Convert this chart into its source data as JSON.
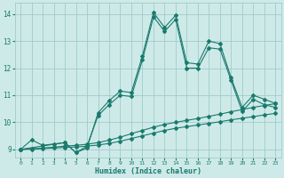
{
  "xlabel": "Humidex (Indice chaleur)",
  "background_color": "#ceeae8",
  "grid_color": "#a0ccca",
  "line_color": "#1a7a6e",
  "xlim": [
    -0.5,
    23.5
  ],
  "ylim": [
    8.7,
    14.4
  ],
  "yticks": [
    9,
    10,
    11,
    12,
    13,
    14
  ],
  "xticks": [
    0,
    1,
    2,
    3,
    4,
    5,
    6,
    7,
    8,
    9,
    10,
    11,
    12,
    13,
    14,
    15,
    16,
    17,
    18,
    19,
    20,
    21,
    22,
    23
  ],
  "main_x": [
    0,
    1,
    2,
    3,
    4,
    5,
    6,
    7,
    8,
    9,
    10,
    11,
    12,
    13,
    14,
    15,
    16,
    17,
    18,
    19,
    20,
    21,
    22,
    23
  ],
  "main_y": [
    9.0,
    9.35,
    9.15,
    9.2,
    9.25,
    8.88,
    9.05,
    10.35,
    10.8,
    11.15,
    11.1,
    12.45,
    14.05,
    13.5,
    13.95,
    12.2,
    12.15,
    13.0,
    12.9,
    11.65,
    10.55,
    11.0,
    10.85,
    10.7
  ],
  "trend1_x": [
    0,
    1,
    2,
    3,
    4,
    5,
    6,
    7,
    8,
    9,
    10,
    11,
    12,
    13,
    14,
    15,
    16,
    17,
    18,
    19,
    20,
    21,
    22,
    23
  ],
  "trend1_y": [
    9.0,
    9.01,
    9.03,
    9.05,
    9.07,
    9.09,
    9.12,
    9.16,
    9.22,
    9.3,
    9.4,
    9.5,
    9.6,
    9.7,
    9.78,
    9.84,
    9.9,
    9.96,
    10.02,
    10.09,
    10.15,
    10.21,
    10.27,
    10.33
  ],
  "trend2_x": [
    0,
    1,
    2,
    3,
    4,
    5,
    6,
    7,
    8,
    9,
    10,
    11,
    12,
    13,
    14,
    15,
    16,
    17,
    18,
    19,
    20,
    21,
    22,
    23
  ],
  "trend2_y": [
    9.0,
    9.02,
    9.05,
    9.08,
    9.12,
    9.15,
    9.19,
    9.25,
    9.34,
    9.45,
    9.58,
    9.7,
    9.82,
    9.92,
    10.0,
    10.07,
    10.14,
    10.22,
    10.3,
    10.39,
    10.47,
    10.55,
    10.62,
    10.69
  ],
  "seg_x": [
    0,
    4,
    5,
    6,
    7,
    8,
    9,
    10,
    11,
    12,
    13,
    14,
    15,
    16,
    17,
    18,
    19,
    20,
    21,
    22,
    23
  ],
  "seg_y": [
    9.0,
    9.25,
    8.88,
    9.12,
    10.25,
    10.65,
    11.0,
    10.95,
    12.3,
    13.9,
    13.35,
    13.8,
    12.0,
    12.0,
    12.75,
    12.7,
    11.55,
    10.4,
    10.85,
    10.65,
    10.55
  ]
}
